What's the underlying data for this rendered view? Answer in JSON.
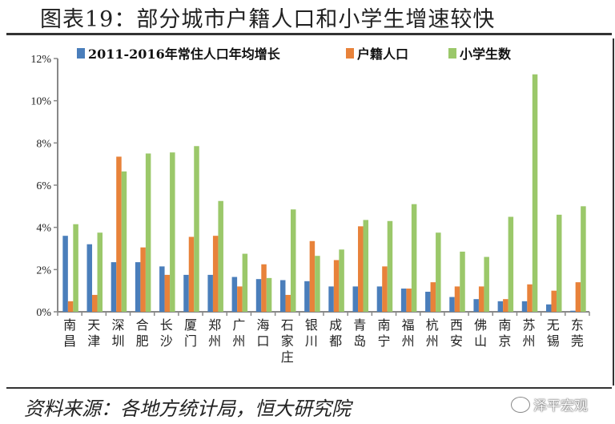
{
  "title": "图表19：部分城市户籍人口和小学生增速较快",
  "source": "资料来源：各地方统计局，恒大研究院",
  "watermark": "泽平宏观",
  "chart_data": {
    "type": "bar",
    "title": "图表19：部分城市户籍人口和小学生增速较快",
    "xlabel": "",
    "ylabel": "",
    "ylim": [
      0,
      12
    ],
    "yticks": [
      "0%",
      "2%",
      "4%",
      "6%",
      "8%",
      "10%",
      "12%"
    ],
    "legend_position": "top",
    "categories": [
      "南昌",
      "天津",
      "深圳",
      "合肥",
      "长沙",
      "厦门",
      "郑州",
      "广州",
      "海口",
      "石家庄",
      "银川",
      "成都",
      "青岛",
      "南宁",
      "福州",
      "杭州",
      "西安",
      "佛山",
      "南京",
      "苏州",
      "无锡",
      "东莞"
    ],
    "series": [
      {
        "name": "2011-2016年常住人口年均增长",
        "color": "#4a7ebb",
        "values": [
          3.6,
          3.2,
          2.35,
          2.35,
          2.15,
          1.75,
          1.75,
          1.65,
          1.55,
          1.5,
          1.45,
          1.2,
          1.2,
          1.2,
          1.1,
          0.95,
          0.7,
          0.6,
          0.5,
          0.5,
          0.35,
          0.05
        ]
      },
      {
        "name": "户籍人口",
        "color": "#e8823a",
        "values": [
          0.5,
          0.8,
          7.35,
          3.05,
          1.75,
          3.55,
          3.6,
          1.2,
          2.25,
          0.8,
          3.35,
          2.45,
          4.05,
          2.15,
          1.1,
          1.4,
          1.2,
          1.2,
          0.6,
          1.3,
          1.0,
          1.4
        ]
      },
      {
        "name": "小学生数",
        "color": "#9bc86a",
        "values": [
          4.15,
          3.75,
          6.65,
          7.5,
          7.55,
          7.85,
          5.25,
          2.75,
          1.6,
          4.85,
          2.65,
          2.95,
          4.35,
          4.3,
          5.1,
          3.75,
          2.85,
          2.6,
          4.5,
          11.25,
          4.6,
          5.0
        ]
      }
    ]
  }
}
